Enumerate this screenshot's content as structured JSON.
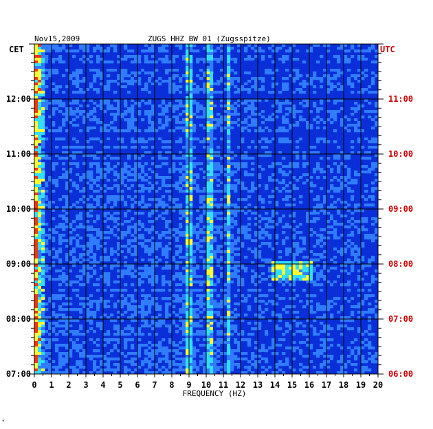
{
  "header": {
    "date": "Nov15,2009",
    "station": "ZUGS HHZ BW 01 (Zugsspitze)"
  },
  "colors": {
    "utc_label": "#cc0000",
    "local_label": "#000000",
    "background_spectrum": "#0a2fd8",
    "grid": "#000000"
  },
  "chart_data": {
    "type": "heatmap",
    "title": "ZUGS HHZ BW 01 (Zugsspitze)",
    "date": "Nov15,2009",
    "xlabel": "FREQUENCY (HZ)",
    "xlim": [
      0,
      20
    ],
    "x_ticks": [
      "0",
      "1",
      "2",
      "3",
      "4",
      "5",
      "6",
      "7",
      "8",
      "9",
      "10",
      "11",
      "12",
      "13",
      "14",
      "15",
      "16",
      "17",
      "18",
      "19",
      "20"
    ],
    "y_left_label": "CET",
    "y_right_label": "UTC",
    "y_left_ticks": [
      "07:00",
      "08:00",
      "09:00",
      "10:00",
      "11:00",
      "12:00"
    ],
    "y_right_ticks": [
      "06:00",
      "07:00",
      "08:00",
      "09:00",
      "10:00",
      "11:00"
    ],
    "time_range_cet": [
      "07:00",
      "13:00"
    ],
    "grid": true,
    "colorscale": [
      "#00007f",
      "#0a2fd8",
      "#2f7cff",
      "#33ddff",
      "#ffff33",
      "#ff3300"
    ],
    "features": [
      {
        "frequency_hz": 0.3,
        "note": "strong low-frequency energy band, all times"
      },
      {
        "frequency_hz": 9.0,
        "note": "persistent narrow line"
      },
      {
        "frequency_hz": 10.2,
        "note": "persistent narrow line"
      },
      {
        "frequency_hz": 11.3,
        "note": "persistent narrow line"
      },
      {
        "frequency_hz": 15.0,
        "note": "transient energy near 08:20-08:50 CET"
      }
    ]
  },
  "footer": {
    "mark": "*"
  }
}
